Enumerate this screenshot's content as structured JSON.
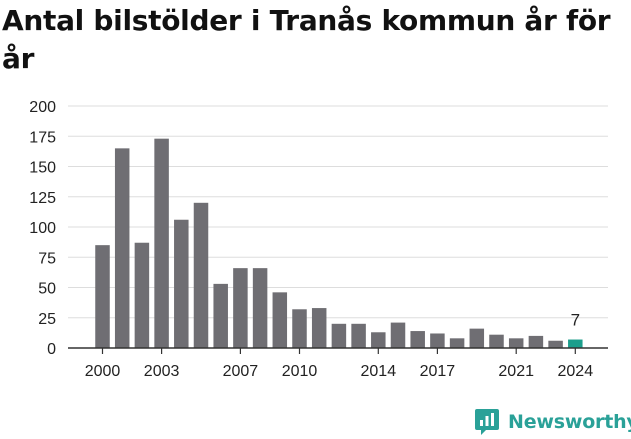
{
  "chart_data": {
    "type": "bar",
    "title": "Antal bilstölder i Tranås kommun år för år",
    "xlabel": "",
    "ylabel": "",
    "categories": [
      "2000",
      "2001",
      "2002",
      "2003",
      "2004",
      "2005",
      "2006",
      "2007",
      "2008",
      "2009",
      "2010",
      "2011",
      "2012",
      "2013",
      "2014",
      "2015",
      "2016",
      "2017",
      "2018",
      "2019",
      "2020",
      "2021",
      "2022",
      "2023",
      "2024"
    ],
    "values": [
      85,
      165,
      87,
      173,
      106,
      120,
      53,
      66,
      66,
      46,
      32,
      33,
      20,
      20,
      13,
      21,
      14,
      12,
      8,
      16,
      11,
      8,
      10,
      6,
      7
    ],
    "x_tick_labels": [
      "2000",
      "2003",
      "2007",
      "2010",
      "2014",
      "2017",
      "2021",
      "2024"
    ],
    "y_ticks": [
      0,
      25,
      50,
      75,
      100,
      125,
      150,
      175,
      200
    ],
    "ylim": [
      0,
      200
    ],
    "grid": true,
    "highlight": {
      "category": "2024",
      "label": "7"
    },
    "colors": {
      "bar": "#6f6e73",
      "highlight": "#1c9e8c",
      "grid": "#dddddd",
      "axis": "#333333"
    }
  },
  "brand": {
    "name": "Newsworthy",
    "icon": "newsworthy-logo-icon",
    "color": "#2aa198"
  }
}
